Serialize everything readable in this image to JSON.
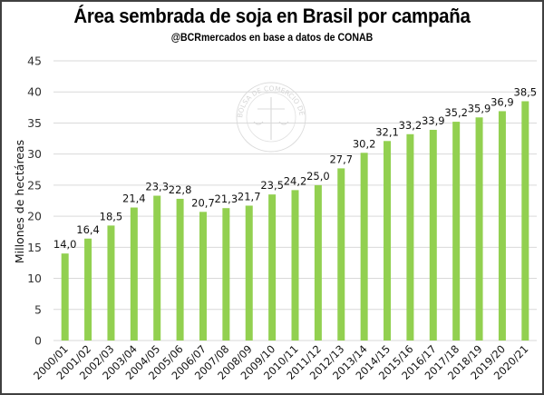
{
  "chart_data": {
    "type": "bar",
    "title": "Área sembrada de soja en Brasil por campaña",
    "subtitle": "@BCRmercados  en base a datos de CONAB",
    "xlabel": "",
    "ylabel": "Millones de hectáreas",
    "ylim": [
      0,
      45
    ],
    "yticks": [
      0,
      5,
      10,
      15,
      20,
      25,
      30,
      35,
      40,
      45
    ],
    "grid": true,
    "legend": "none",
    "bar_color": "#92D050",
    "watermark": "BOLSA DE COMERCIO DE ROSARIO",
    "categories": [
      "2000/01",
      "2001/02",
      "2002/03",
      "2003/04",
      "2004/05",
      "2005/06",
      "2006/07",
      "2007/08",
      "2008/09",
      "2009/10",
      "2010/11",
      "2011/12",
      "2012/13",
      "2013/14",
      "2014/15",
      "2015/16",
      "2016/17",
      "2017/18",
      "2018/19",
      "2019/20",
      "2020/21"
    ],
    "values": [
      14.0,
      16.4,
      18.5,
      21.4,
      23.3,
      22.8,
      20.7,
      21.3,
      21.7,
      23.5,
      24.2,
      25.0,
      27.7,
      30.2,
      32.1,
      33.2,
      33.9,
      35.2,
      35.9,
      36.9,
      38.5
    ],
    "data_labels": [
      "14,0",
      "16,4",
      "18,5",
      "21,4",
      "23,3",
      "22,8",
      "20,7",
      "21,3",
      "21,7",
      "23,5",
      "24,2",
      "25,0",
      "27,7",
      "30,2",
      "32,1",
      "33,2",
      "33,9",
      "35,2",
      "35,9",
      "36,9",
      "38,5"
    ]
  }
}
